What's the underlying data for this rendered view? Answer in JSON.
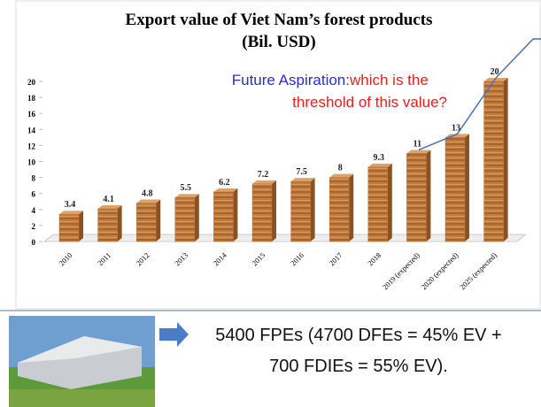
{
  "chart_data": {
    "type": "bar",
    "title": "Export value of Viet Nam’s forest products",
    "subtitle": "(Bil. USD)",
    "annotation": {
      "lead": "Future Aspiration: ",
      "lines": [
        "which is the",
        "threshold of this value?"
      ]
    },
    "categories": [
      "2010",
      "2011",
      "2012",
      "2013",
      "2014",
      "2015",
      "2016",
      "2017",
      "2018",
      "2019 (expected)",
      "2020 (expected)",
      "2025 (expected)"
    ],
    "values": [
      3.4,
      4.1,
      4.8,
      5.5,
      6.2,
      7.2,
      7.5,
      8,
      9.3,
      11,
      13,
      20
    ],
    "color": "#b8743a",
    "ylim": [
      0,
      20
    ],
    "yticks": [
      0,
      2,
      4,
      6,
      8,
      10,
      12,
      14,
      16,
      18,
      20
    ]
  },
  "footer": {
    "lines": [
      "5400 FPEs (4700 DFEs = 45% EV +",
      "700 FDIEs = 55% EV)."
    ]
  }
}
